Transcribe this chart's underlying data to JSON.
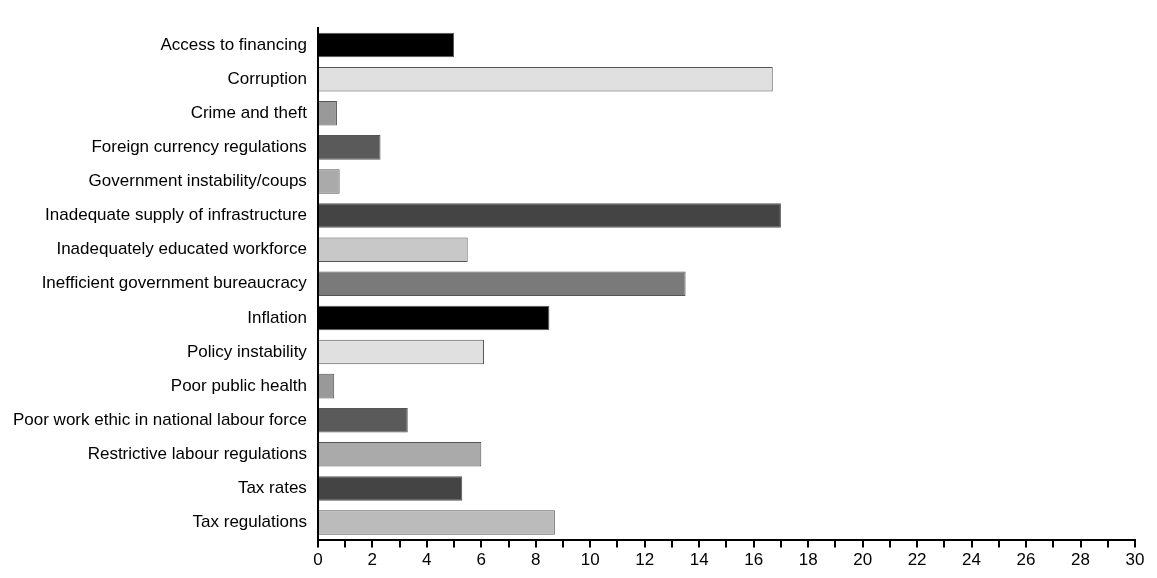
{
  "chart_data": {
    "type": "bar",
    "orientation": "horizontal",
    "categories": [
      "Access to financing",
      "Corruption",
      "Crime and theft",
      "Foreign currency regulations",
      "Government instability/coups",
      "Inadequate supply of infrastructure",
      "Inadequately educated workforce",
      "Inefficient government bureaucracy",
      "Inflation",
      "Policy instability",
      "Poor public health",
      "Poor work ethic in national labour force",
      "Restrictive labour regulations",
      "Tax rates",
      "Tax regulations"
    ],
    "values": [
      5.0,
      16.7,
      0.7,
      2.3,
      0.8,
      17.0,
      5.5,
      13.5,
      8.5,
      6.1,
      0.6,
      3.3,
      6.0,
      5.3,
      8.7
    ],
    "colors": [
      "#000000",
      "#e0e0e0",
      "#999999",
      "#5a5a5a",
      "#aaaaaa",
      "#444444",
      "#c8c8c8",
      "#7a7a7a",
      "#000000",
      "#e0e0e0",
      "#999999",
      "#5a5a5a",
      "#aaaaaa",
      "#444444",
      "#bbbbbb"
    ],
    "xlim": [
      0,
      30
    ],
    "xticks": [
      0,
      {
        "value": 1,
        "label": null
      },
      2,
      {
        "value": 3,
        "label": null
      },
      4,
      {
        "value": 5,
        "label": null
      },
      6,
      {
        "value": 7,
        "label": null
      },
      8,
      {
        "value": 9,
        "label": null
      },
      10,
      {
        "value": 11,
        "label": null
      },
      12,
      {
        "value": 13,
        "label": null
      },
      14,
      {
        "value": 15,
        "label": null
      },
      16,
      {
        "value": 17,
        "label": null
      },
      18,
      {
        "value": 19,
        "label": null
      },
      20,
      {
        "value": 21,
        "label": null
      },
      22,
      {
        "value": 23,
        "label": null
      },
      24,
      {
        "value": 25,
        "label": null
      },
      26,
      {
        "value": 27,
        "label": null
      },
      28,
      {
        "value": 29,
        "label": null
      },
      30
    ]
  }
}
